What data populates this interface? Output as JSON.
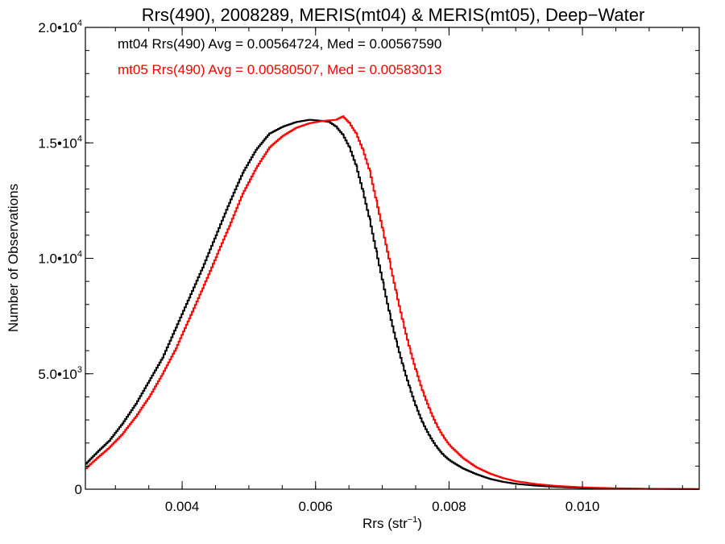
{
  "chart_data": {
    "type": "line",
    "title": "Rrs(490), 2008289, MERIS(mt04) & MERIS(mt05), Deep−Water",
    "xlabel": "Rrs (str",
    "xlabel_exp": "−1",
    "xlabel_close": ")",
    "ylabel": "Number of Observations",
    "xlim": [
      0.00255,
      0.01175
    ],
    "ylim": [
      0,
      20000
    ],
    "grid": false,
    "step": true,
    "x_ticks": [
      {
        "value": 0.004,
        "label": "0.004"
      },
      {
        "value": 0.006,
        "label": "0.006"
      },
      {
        "value": 0.008,
        "label": "0.008"
      },
      {
        "value": 0.01,
        "label": "0.010"
      }
    ],
    "x_minor_step": 0.0005,
    "y_ticks": [
      {
        "value": 0,
        "mant": "0",
        "exp": ""
      },
      {
        "value": 5000,
        "mant": "5.0•10",
        "exp": "3"
      },
      {
        "value": 10000,
        "mant": "1.0•10",
        "exp": "4"
      },
      {
        "value": 15000,
        "mant": "1.5•10",
        "exp": "4"
      },
      {
        "value": 20000,
        "mant": "2.0•10",
        "exp": "4"
      }
    ],
    "y_minor_step": 1000,
    "series": [
      {
        "name": "mt04",
        "color": "#000000",
        "legend": "mt04 Rrs(490) Avg = 0.00564724, Med = 0.00567590",
        "points": [
          [
            0.00255,
            1100
          ],
          [
            0.0027,
            1550
          ],
          [
            0.0029,
            2100
          ],
          [
            0.0031,
            2850
          ],
          [
            0.0033,
            3700
          ],
          [
            0.0035,
            4700
          ],
          [
            0.0037,
            5700
          ],
          [
            0.0039,
            7000
          ],
          [
            0.0041,
            8300
          ],
          [
            0.0043,
            9600
          ],
          [
            0.0045,
            11000
          ],
          [
            0.0047,
            12400
          ],
          [
            0.0049,
            13700
          ],
          [
            0.0051,
            14700
          ],
          [
            0.0053,
            15400
          ],
          [
            0.0055,
            15700
          ],
          [
            0.0057,
            15900
          ],
          [
            0.0059,
            16000
          ],
          [
            0.0061,
            15950
          ],
          [
            0.0062,
            15900
          ],
          [
            0.0063,
            15700
          ],
          [
            0.0064,
            15350
          ],
          [
            0.0065,
            14800
          ],
          [
            0.0066,
            14000
          ],
          [
            0.0067,
            12900
          ],
          [
            0.0068,
            11700
          ],
          [
            0.0069,
            10300
          ],
          [
            0.007,
            8950
          ],
          [
            0.0071,
            7600
          ],
          [
            0.0072,
            6400
          ],
          [
            0.0073,
            5350
          ],
          [
            0.0074,
            4400
          ],
          [
            0.0075,
            3550
          ],
          [
            0.0076,
            2850
          ],
          [
            0.0077,
            2300
          ],
          [
            0.0078,
            1850
          ],
          [
            0.0079,
            1500
          ],
          [
            0.008,
            1250
          ],
          [
            0.0082,
            900
          ],
          [
            0.0084,
            650
          ],
          [
            0.0086,
            450
          ],
          [
            0.0088,
            320
          ],
          [
            0.009,
            230
          ],
          [
            0.0093,
            150
          ],
          [
            0.0096,
            100
          ],
          [
            0.01,
            55
          ],
          [
            0.0105,
            30
          ],
          [
            0.011,
            15
          ],
          [
            0.01175,
            5
          ]
        ]
      },
      {
        "name": "mt05",
        "color": "#ff0000",
        "legend": "mt05 Rrs(490) Avg = 0.00580507, Med = 0.00583013",
        "points": [
          [
            0.00255,
            900
          ],
          [
            0.0027,
            1300
          ],
          [
            0.0029,
            1800
          ],
          [
            0.0031,
            2400
          ],
          [
            0.0033,
            3150
          ],
          [
            0.0035,
            4000
          ],
          [
            0.0037,
            5000
          ],
          [
            0.0039,
            6100
          ],
          [
            0.0041,
            7400
          ],
          [
            0.0043,
            8700
          ],
          [
            0.0045,
            10050
          ],
          [
            0.0047,
            11400
          ],
          [
            0.0049,
            12800
          ],
          [
            0.0051,
            13900
          ],
          [
            0.0053,
            14800
          ],
          [
            0.0055,
            15300
          ],
          [
            0.0057,
            15650
          ],
          [
            0.0059,
            15850
          ],
          [
            0.0061,
            15950
          ],
          [
            0.0063,
            16000
          ],
          [
            0.0064,
            16150
          ],
          [
            0.0065,
            15850
          ],
          [
            0.0066,
            15400
          ],
          [
            0.0067,
            14700
          ],
          [
            0.0068,
            13800
          ],
          [
            0.0069,
            12500
          ],
          [
            0.007,
            11200
          ],
          [
            0.0071,
            9850
          ],
          [
            0.0072,
            8500
          ],
          [
            0.0073,
            7250
          ],
          [
            0.0074,
            6100
          ],
          [
            0.0075,
            5100
          ],
          [
            0.0076,
            4200
          ],
          [
            0.0077,
            3450
          ],
          [
            0.0078,
            2800
          ],
          [
            0.0079,
            2300
          ],
          [
            0.008,
            1900
          ],
          [
            0.0082,
            1350
          ],
          [
            0.0084,
            950
          ],
          [
            0.0086,
            680
          ],
          [
            0.0088,
            480
          ],
          [
            0.009,
            340
          ],
          [
            0.0093,
            220
          ],
          [
            0.0096,
            140
          ],
          [
            0.01,
            80
          ],
          [
            0.0105,
            40
          ],
          [
            0.011,
            20
          ],
          [
            0.01175,
            5
          ]
        ]
      }
    ]
  }
}
